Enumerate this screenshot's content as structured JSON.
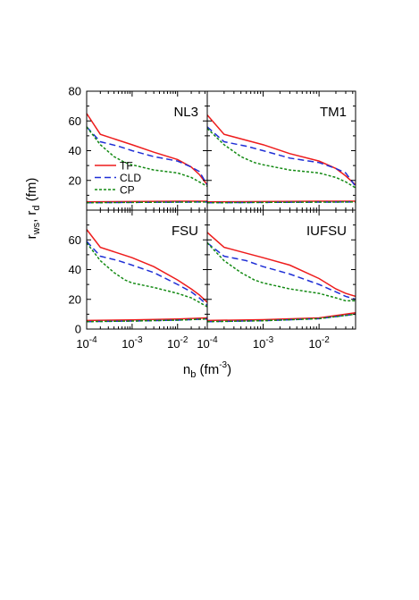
{
  "figure": {
    "ylabel_main": "r",
    "ylabel_sub1": "ws",
    "ylabel_mid": ", r",
    "ylabel_sub2": "d",
    "ylabel_unit": " (fm)",
    "xlabel_main": "n",
    "xlabel_sub": "b",
    "xlabel_unit_pre": " (fm",
    "xlabel_sup": "-3",
    "xlabel_unit_post": ")"
  },
  "legend": [
    {
      "label": "TF",
      "color": "#ee1c1c",
      "dash": "solid"
    },
    {
      "label": "CLD",
      "color": "#1f2fd6",
      "dash": "dashed"
    },
    {
      "label": "CP",
      "color": "#138a13",
      "dash": "dotted"
    }
  ],
  "axes": {
    "ylim": [
      0,
      80
    ],
    "yticks": [
      0,
      20,
      40,
      60,
      80
    ],
    "yticks_bottom_labels": [
      "0",
      "20",
      "40",
      "60"
    ],
    "yticks_top_labels": [
      "20",
      "40",
      "60",
      "80"
    ],
    "xlim": [
      0.0001,
      0.045
    ],
    "xscale": "log",
    "xtick_left_labels": [
      {
        "base": "10",
        "exp": "-4",
        "value": 0.0001
      },
      {
        "base": "10",
        "exp": "-3",
        "value": 0.001
      },
      {
        "base": "10",
        "exp": "-2",
        "value": 0.01
      }
    ],
    "xtick_right_labels": [
      {
        "base": "10",
        "exp": "-4",
        "value": 0.0001
      },
      {
        "base": "10",
        "exp": "-3",
        "value": 0.001
      },
      {
        "base": "10",
        "exp": "-2",
        "value": 0.01
      }
    ]
  },
  "chart_data": [
    {
      "type": "line",
      "panel": "NL3",
      "xscale": "log",
      "xlim": [
        0.0001,
        0.045
      ],
      "ylim": [
        0,
        80
      ],
      "series": [
        {
          "name": "TF",
          "kind": "rws",
          "x": [
            0.0001,
            0.0002,
            0.0005,
            0.001,
            0.003,
            0.01,
            0.02,
            0.03,
            0.045
          ],
          "y": [
            65,
            51,
            47,
            44,
            39,
            34,
            29,
            24,
            17
          ]
        },
        {
          "name": "CLD",
          "kind": "rws",
          "x": [
            0.0001,
            0.0002,
            0.0005,
            0.001,
            0.003,
            0.01,
            0.02,
            0.03,
            0.045
          ],
          "y": [
            56,
            46,
            43,
            40,
            36,
            33,
            29,
            26,
            17
          ]
        },
        {
          "name": "CP",
          "kind": "rws",
          "x": [
            0.0001,
            0.0002,
            0.0004,
            0.0007,
            0.001,
            0.003,
            0.01,
            0.02,
            0.03,
            0.045
          ],
          "y": [
            56,
            44,
            36,
            32,
            30.5,
            27,
            25,
            22,
            19,
            16
          ]
        },
        {
          "name": "TF",
          "kind": "rd",
          "x": [
            0.0001,
            0.001,
            0.01,
            0.045
          ],
          "y": [
            5.6,
            5.8,
            6.0,
            6.0
          ]
        },
        {
          "name": "CLD",
          "kind": "rd",
          "x": [
            0.0001,
            0.001,
            0.01,
            0.045
          ],
          "y": [
            5.0,
            5.2,
            5.4,
            5.5
          ]
        },
        {
          "name": "CP",
          "kind": "rd",
          "x": [
            0.0001,
            0.001,
            0.01,
            0.045
          ],
          "y": [
            5.0,
            5.2,
            5.4,
            5.5
          ]
        }
      ]
    },
    {
      "type": "line",
      "panel": "TM1",
      "xscale": "log",
      "xlim": [
        0.0001,
        0.045
      ],
      "ylim": [
        0,
        80
      ],
      "series": [
        {
          "name": "TF",
          "kind": "rws",
          "x": [
            0.0001,
            0.0002,
            0.0005,
            0.001,
            0.003,
            0.01,
            0.02,
            0.03,
            0.045
          ],
          "y": [
            64,
            51,
            47,
            44,
            38,
            33,
            28,
            23,
            17
          ]
        },
        {
          "name": "CLD",
          "kind": "rws",
          "x": [
            0.0001,
            0.0002,
            0.0005,
            0.001,
            0.003,
            0.01,
            0.02,
            0.03,
            0.045
          ],
          "y": [
            56,
            46,
            43,
            40,
            35,
            32,
            28,
            25,
            16
          ]
        },
        {
          "name": "CP",
          "kind": "rws",
          "x": [
            0.0001,
            0.0002,
            0.0004,
            0.0007,
            0.001,
            0.003,
            0.01,
            0.02,
            0.03,
            0.045
          ],
          "y": [
            55,
            44,
            36,
            32,
            30.5,
            27,
            25,
            22,
            19,
            15
          ]
        },
        {
          "name": "TF",
          "kind": "rd",
          "x": [
            0.0001,
            0.001,
            0.01,
            0.045
          ],
          "y": [
            5.6,
            5.8,
            6.0,
            6.0
          ]
        },
        {
          "name": "CLD",
          "kind": "rd",
          "x": [
            0.0001,
            0.001,
            0.01,
            0.045
          ],
          "y": [
            5.0,
            5.2,
            5.4,
            5.5
          ]
        },
        {
          "name": "CP",
          "kind": "rd",
          "x": [
            0.0001,
            0.001,
            0.01,
            0.045
          ],
          "y": [
            5.0,
            5.2,
            5.4,
            5.5
          ]
        }
      ]
    },
    {
      "type": "line",
      "panel": "FSU",
      "xscale": "log",
      "xlim": [
        0.0001,
        0.045
      ],
      "ylim": [
        0,
        80
      ],
      "series": [
        {
          "name": "TF",
          "kind": "rws",
          "x": [
            0.0001,
            0.0002,
            0.0005,
            0.001,
            0.003,
            0.01,
            0.02,
            0.03,
            0.045
          ],
          "y": [
            67,
            55,
            51,
            48,
            42,
            33,
            27,
            23,
            18
          ]
        },
        {
          "name": "CLD",
          "kind": "rws",
          "x": [
            0.0001,
            0.0002,
            0.0005,
            0.001,
            0.003,
            0.01,
            0.02,
            0.03,
            0.045
          ],
          "y": [
            59,
            49,
            46,
            43,
            38,
            30,
            25,
            21,
            16
          ]
        },
        {
          "name": "CP",
          "kind": "rws",
          "x": [
            0.0001,
            0.0002,
            0.0004,
            0.0007,
            0.001,
            0.003,
            0.01,
            0.02,
            0.03,
            0.045
          ],
          "y": [
            58,
            46,
            38,
            33,
            31,
            28,
            24,
            21,
            18,
            15
          ]
        },
        {
          "name": "TF",
          "kind": "rd",
          "x": [
            0.0001,
            0.001,
            0.01,
            0.045
          ],
          "y": [
            5.8,
            6.2,
            6.8,
            7.5
          ]
        },
        {
          "name": "CLD",
          "kind": "rd",
          "x": [
            0.0001,
            0.001,
            0.01,
            0.045
          ],
          "y": [
            5.0,
            5.4,
            6.0,
            6.8
          ]
        },
        {
          "name": "CP",
          "kind": "rd",
          "x": [
            0.0001,
            0.001,
            0.01,
            0.045
          ],
          "y": [
            5.0,
            5.4,
            6.0,
            6.8
          ]
        }
      ]
    },
    {
      "type": "line",
      "panel": "IUFSU",
      "xscale": "log",
      "xlim": [
        0.0001,
        0.045
      ],
      "ylim": [
        0,
        80
      ],
      "series": [
        {
          "name": "TF",
          "kind": "rws",
          "x": [
            0.0001,
            0.0002,
            0.0005,
            0.001,
            0.003,
            0.01,
            0.02,
            0.03,
            0.045
          ],
          "y": [
            65,
            55,
            51,
            48,
            43,
            34,
            27,
            24,
            22
          ]
        },
        {
          "name": "CLD",
          "kind": "rws",
          "x": [
            0.0001,
            0.0002,
            0.0005,
            0.001,
            0.003,
            0.01,
            0.02,
            0.03,
            0.045
          ],
          "y": [
            58,
            49,
            46,
            42,
            37,
            30,
            25,
            22,
            20
          ]
        },
        {
          "name": "CP",
          "kind": "rws",
          "x": [
            0.0001,
            0.0002,
            0.0004,
            0.0007,
            0.001,
            0.003,
            0.01,
            0.02,
            0.03,
            0.045
          ],
          "y": [
            58,
            46,
            38,
            33,
            31,
            27,
            24,
            21,
            19,
            19
          ]
        },
        {
          "name": "TF",
          "kind": "rd",
          "x": [
            0.0001,
            0.001,
            0.01,
            0.045
          ],
          "y": [
            5.8,
            6.3,
            7.5,
            11
          ]
        },
        {
          "name": "CLD",
          "kind": "rd",
          "x": [
            0.0001,
            0.001,
            0.01,
            0.045
          ],
          "y": [
            5.0,
            5.6,
            7.0,
            10
          ]
        },
        {
          "name": "CP",
          "kind": "rd",
          "x": [
            0.0001,
            0.001,
            0.01,
            0.045
          ],
          "y": [
            5.0,
            5.6,
            7.0,
            10
          ]
        }
      ]
    }
  ]
}
